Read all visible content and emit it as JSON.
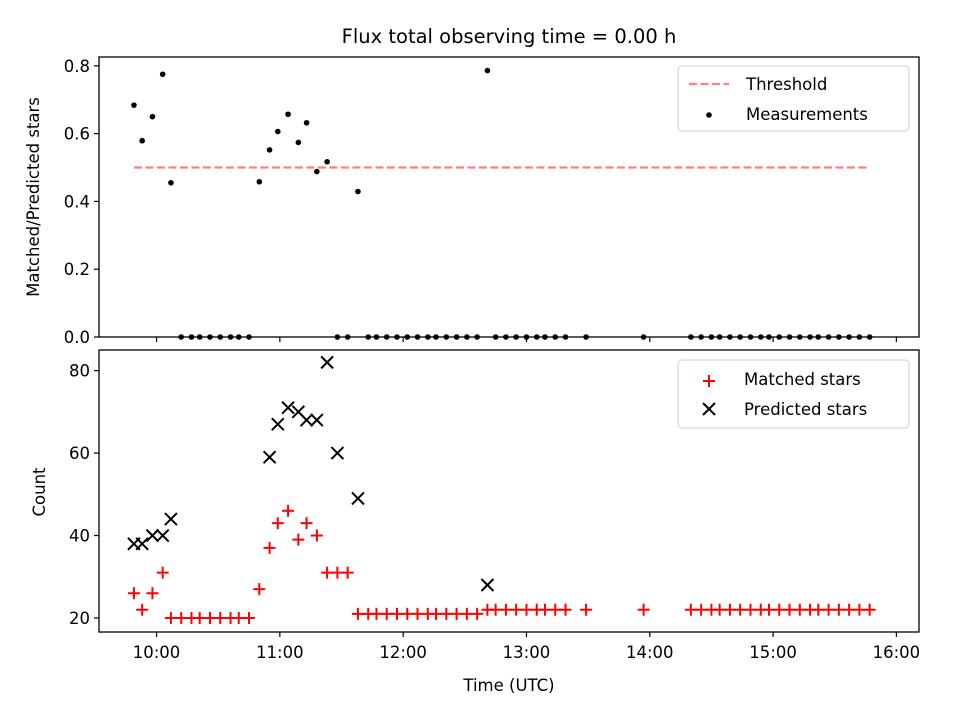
{
  "chart_data": [
    {
      "type": "scatter",
      "title": "Flux total observing time = 0.00 h",
      "xlabel": "",
      "ylabel": "Matched/Predicted stars",
      "xlim": [
        "09:32",
        "16:11"
      ],
      "ylim": [
        0,
        0.826
      ],
      "yticks": [
        0.0,
        0.2,
        0.4,
        0.6,
        0.8
      ],
      "ytick_labels": [
        "0.0",
        "0.2",
        "0.4",
        "0.6",
        "0.8"
      ],
      "legend_position": "upper right",
      "grid": false,
      "series": [
        {
          "name": "Threshold",
          "kind": "line",
          "style": "dashed",
          "color": "#ff7f7f",
          "x": [
            "09:49",
            "15:47"
          ],
          "y": [
            0.5,
            0.5
          ]
        },
        {
          "name": "Measurements",
          "kind": "scatter",
          "marker": "dot",
          "color": "#000000",
          "x": [
            "09:49",
            "09:53",
            "09:58",
            "10:03",
            "10:07",
            "10:12",
            "10:17",
            "10:21",
            "10:26",
            "10:31",
            "10:36",
            "10:40",
            "10:45",
            "10:50",
            "10:55",
            "10:59",
            "11:04",
            "11:09",
            "11:13",
            "11:18",
            "11:23",
            "11:28",
            "11:33",
            "11:38",
            "11:43",
            "11:47",
            "11:52",
            "11:57",
            "12:02",
            "12:07",
            "12:12",
            "12:16",
            "12:21",
            "12:26",
            "12:31",
            "12:36",
            "12:41",
            "12:45",
            "12:50",
            "12:55",
            "13:00",
            "13:05",
            "13:09",
            "13:14",
            "13:19",
            "13:29",
            "13:57",
            "14:20",
            "14:25",
            "14:30",
            "14:34",
            "14:39",
            "14:44",
            "14:49",
            "14:54",
            "14:58",
            "15:03",
            "15:08",
            "15:13",
            "15:18",
            "15:22",
            "15:27",
            "15:32",
            "15:37",
            "15:42",
            "15:47"
          ],
          "y": [
            0.684,
            0.579,
            0.65,
            0.775,
            0.455,
            0,
            0,
            0,
            0,
            0,
            0,
            0,
            0,
            0.458,
            0.552,
            0.606,
            0.657,
            0.574,
            0.632,
            0.488,
            0.517,
            0,
            0,
            0.429,
            0,
            0,
            0,
            0,
            0,
            0,
            0,
            0,
            0,
            0,
            0,
            0,
            0.786,
            0,
            0,
            0,
            0,
            0,
            0,
            0,
            0,
            0,
            0,
            0,
            0,
            0,
            0,
            0,
            0,
            0,
            0,
            0,
            0,
            0,
            0,
            0,
            0,
            0,
            0,
            0,
            0,
            0
          ]
        }
      ]
    },
    {
      "type": "scatter",
      "title": "",
      "xlabel": "Time (UTC)",
      "ylabel": "Count",
      "xlim": [
        "09:32",
        "16:11"
      ],
      "ylim": [
        16.6,
        85
      ],
      "yticks": [
        20,
        40,
        60,
        80
      ],
      "ytick_labels": [
        "20",
        "40",
        "60",
        "80"
      ],
      "xticks": [
        "10:00",
        "11:00",
        "12:00",
        "13:00",
        "14:00",
        "15:00",
        "16:00"
      ],
      "xtick_labels": [
        "10:00",
        "11:00",
        "12:00",
        "13:00",
        "14:00",
        "15:00",
        "16:00"
      ],
      "legend_position": "upper right",
      "grid": false,
      "series": [
        {
          "name": "Matched stars",
          "kind": "scatter",
          "marker": "plus",
          "color": "#ff0000",
          "x": [
            "09:49",
            "09:53",
            "09:58",
            "10:03",
            "10:07",
            "10:12",
            "10:17",
            "10:21",
            "10:26",
            "10:31",
            "10:36",
            "10:40",
            "10:45",
            "10:50",
            "10:55",
            "10:59",
            "11:04",
            "11:09",
            "11:13",
            "11:18",
            "11:23",
            "11:28",
            "11:33",
            "11:38",
            "11:43",
            "11:47",
            "11:52",
            "11:57",
            "12:02",
            "12:07",
            "12:12",
            "12:16",
            "12:21",
            "12:26",
            "12:31",
            "12:36",
            "12:41",
            "12:45",
            "12:50",
            "12:55",
            "13:00",
            "13:05",
            "13:09",
            "13:14",
            "13:19",
            "13:29",
            "13:57",
            "14:20",
            "14:25",
            "14:30",
            "14:34",
            "14:39",
            "14:44",
            "14:49",
            "14:54",
            "14:58",
            "15:03",
            "15:08",
            "15:13",
            "15:18",
            "15:22",
            "15:27",
            "15:32",
            "15:37",
            "15:42",
            "15:47"
          ],
          "y": [
            26,
            22,
            26,
            31,
            20,
            20,
            20,
            20,
            20,
            20,
            20,
            20,
            20,
            27,
            37,
            43,
            46,
            39,
            43,
            40,
            31,
            31,
            31,
            21,
            21,
            21,
            21,
            21,
            21,
            21,
            21,
            21,
            21,
            21,
            21,
            21,
            22,
            22,
            22,
            22,
            22,
            22,
            22,
            22,
            22,
            22,
            22,
            22,
            22,
            22,
            22,
            22,
            22,
            22,
            22,
            22,
            22,
            22,
            22,
            22,
            22,
            22,
            22,
            22,
            22,
            22
          ]
        },
        {
          "name": "Predicted stars",
          "kind": "scatter",
          "marker": "x",
          "color": "#000000",
          "x": [
            "09:49",
            "09:53",
            "09:58",
            "10:03",
            "10:07",
            "10:55",
            "10:59",
            "11:04",
            "11:09",
            "11:13",
            "11:18",
            "11:23",
            "11:28",
            "11:38",
            "12:41"
          ],
          "y": [
            38,
            38,
            40,
            40,
            44,
            59,
            67,
            71,
            70,
            68,
            68,
            82,
            60,
            49,
            28
          ]
        }
      ]
    }
  ]
}
